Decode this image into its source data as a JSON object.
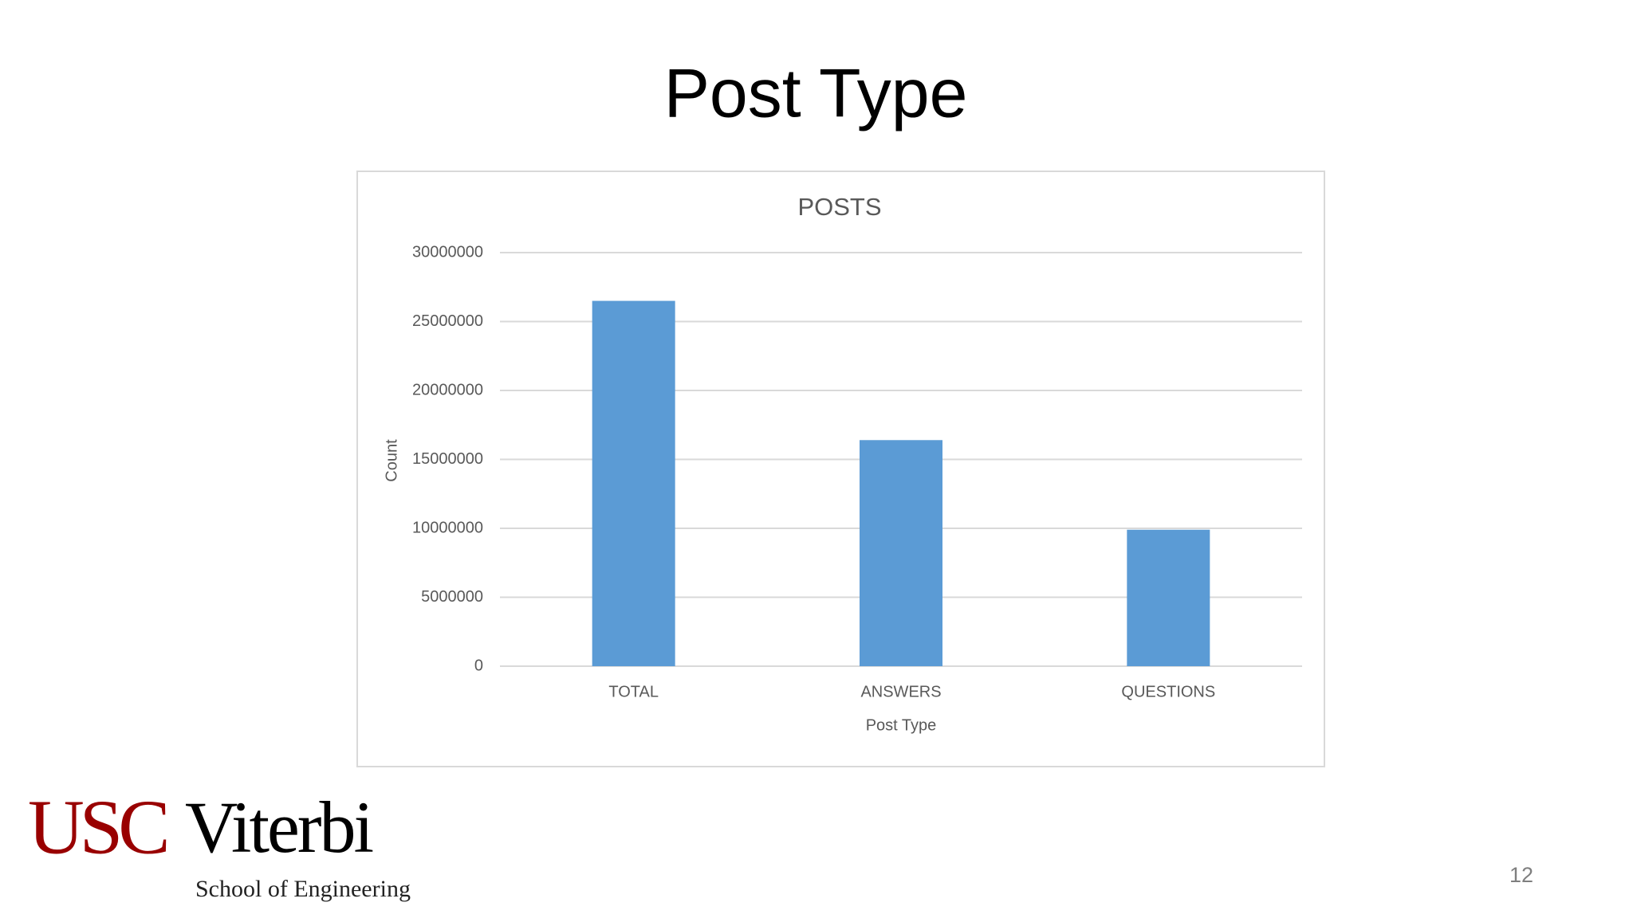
{
  "slide": {
    "title": "Post Type",
    "logo_main": "USC",
    "logo_sub": "Viterbi",
    "logo_school": "School of Engineering",
    "page_number": "12"
  },
  "chart_data": {
    "type": "bar",
    "title": "POSTS",
    "categories": [
      "TOTAL",
      "ANSWERS",
      "QUESTIONS"
    ],
    "values": [
      26500000,
      16400000,
      9900000
    ],
    "color": "#5b9bd5",
    "x_label": "Post Type",
    "y_label": "Count",
    "ylim": [
      0,
      30000000
    ],
    "yticks": [
      0,
      5000000,
      10000000,
      15000000,
      20000000,
      25000000,
      30000000
    ],
    "grid": true
  }
}
